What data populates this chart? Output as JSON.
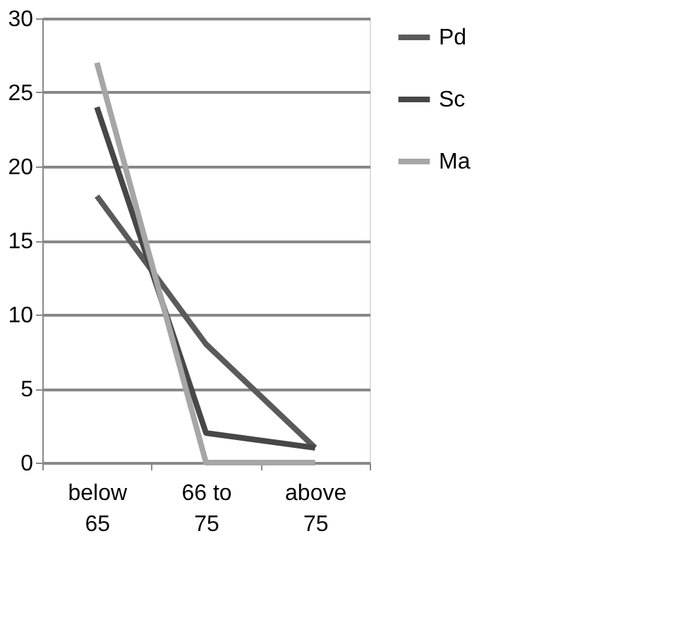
{
  "chart_data": {
    "type": "line",
    "categories": [
      "below 65",
      "66 to 75",
      "above 75"
    ],
    "series": [
      {
        "name": "Pd",
        "color": "#5a5a5a",
        "values": [
          18,
          8,
          1
        ]
      },
      {
        "name": "Sc",
        "color": "#474747",
        "values": [
          24,
          2,
          1
        ]
      },
      {
        "name": "Ma",
        "color": "#a6a6a6",
        "values": [
          27,
          0,
          0
        ]
      }
    ],
    "ylim": [
      0,
      30
    ],
    "yticks": [
      0,
      5,
      10,
      15,
      20,
      25,
      30
    ],
    "grid": "y",
    "legend": "right",
    "marker": "none",
    "line_style": "solid"
  }
}
